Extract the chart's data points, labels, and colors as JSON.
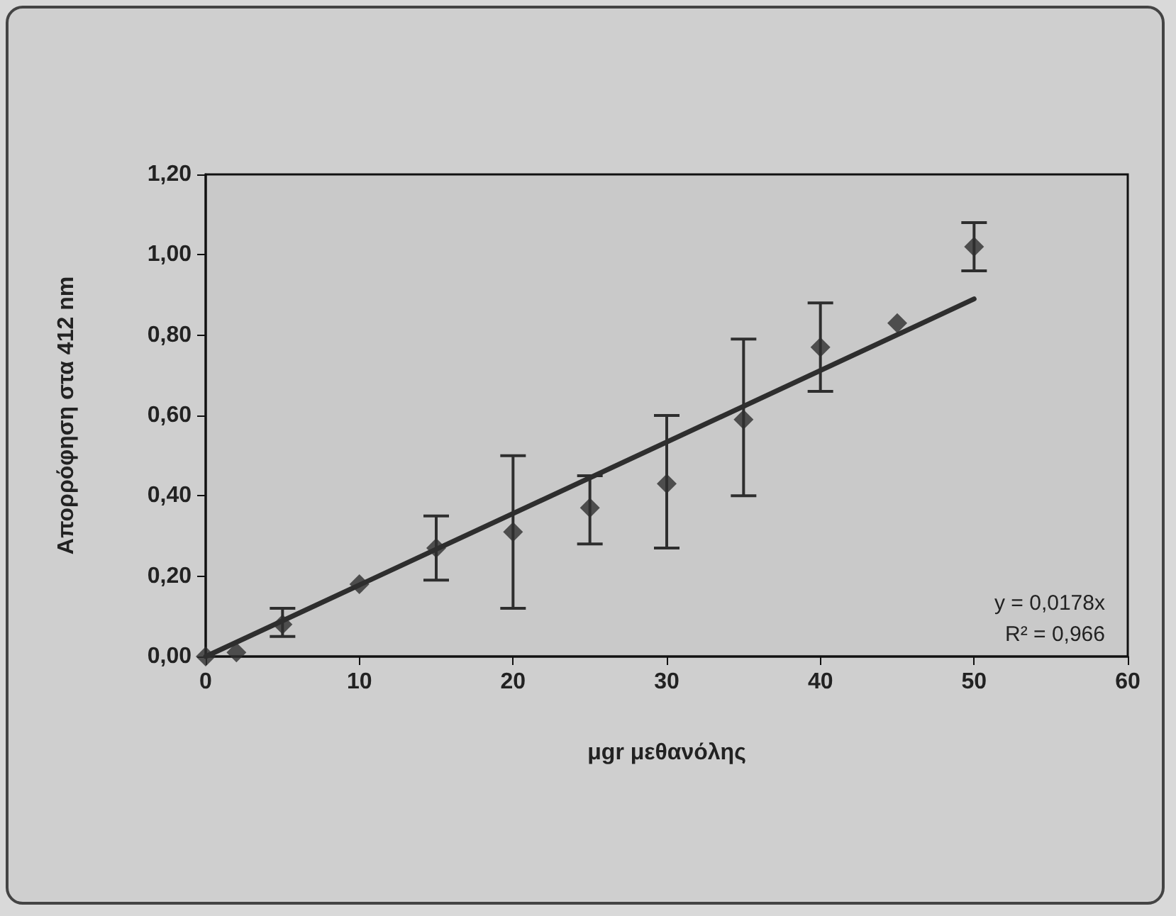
{
  "chart_data": {
    "type": "scatter",
    "xlabel": "μgr μεθανόλης",
    "ylabel": "Απορρόφηση στα 412 nm",
    "marker": "diamond",
    "grid": false,
    "xlim": [
      0,
      60
    ],
    "xticks": [
      0,
      10,
      20,
      30,
      40,
      50,
      60
    ],
    "ylim": [
      0,
      1.2
    ],
    "yticks": [
      {
        "value": 0,
        "label": "0,00"
      },
      {
        "value": 0.2,
        "label": "0,20"
      },
      {
        "value": 0.4,
        "label": "0,40"
      },
      {
        "value": 0.6,
        "label": "0,60"
      },
      {
        "value": 0.8,
        "label": "0,80"
      },
      {
        "value": 1.0,
        "label": "1,00"
      },
      {
        "value": 1.2,
        "label": "1,20"
      }
    ],
    "series": [
      {
        "color": "#2e2e2e",
        "x": [
          0,
          2,
          5,
          10,
          15,
          20,
          25,
          30,
          35,
          40,
          45,
          50
        ],
        "values": [
          0,
          0.01,
          0.08,
          0.18,
          0.27,
          0.31,
          0.37,
          0.43,
          0.59,
          0.77,
          0.83,
          1.02
        ],
        "errors": [
          null,
          null,
          [
            0.05,
            0.12
          ],
          null,
          [
            0.19,
            0.35
          ],
          [
            0.12,
            0.5
          ],
          [
            0.28,
            0.45
          ],
          [
            0.27,
            0.6
          ],
          [
            0.4,
            0.79
          ],
          [
            0.66,
            0.88
          ],
          null,
          [
            0.96,
            1.08
          ]
        ]
      },
      {
        "type": "line",
        "color": "#2e2e2e",
        "line_style": "solid",
        "marker": "none",
        "x": [
          0,
          50
        ],
        "values": [
          0,
          0.89
        ]
      }
    ],
    "annotations": [
      "y = 0,0178x",
      "R² = 0,966"
    ]
  }
}
